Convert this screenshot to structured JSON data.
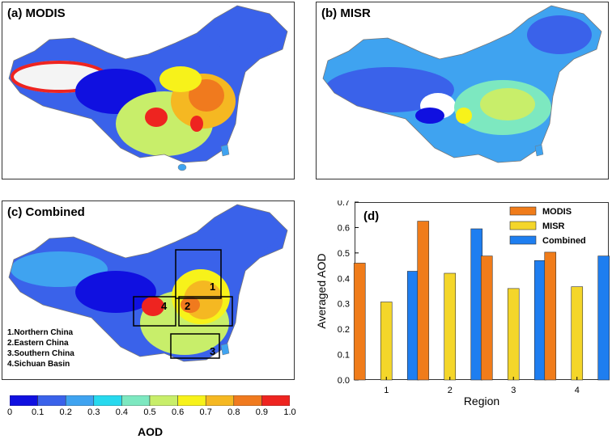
{
  "panels": {
    "a": {
      "label": "(a) MODIS"
    },
    "b": {
      "label": "(b) MISR"
    },
    "c": {
      "label": "(c) Combined"
    },
    "d": {
      "label": "(d)"
    }
  },
  "regions": {
    "legend": [
      "1.Northern China",
      "2.Eastern China",
      "3.Southern China",
      "4.Sichuan Basin"
    ],
    "box_numbers": [
      "1",
      "2",
      "3",
      "4"
    ]
  },
  "colorbar": {
    "title": "AOD",
    "ticks": [
      "0",
      "0.1",
      "0.2",
      "0.3",
      "0.4",
      "0.5",
      "0.6",
      "0.7",
      "0.8",
      "0.9",
      "1.0"
    ],
    "colors": [
      "#1010e0",
      "#3a62ea",
      "#3fa3f0",
      "#27d9ee",
      "#7de8c0",
      "#c8ee6a",
      "#f7f21a",
      "#f5b822",
      "#f07a1e",
      "#ee2420"
    ]
  },
  "chart_data": {
    "type": "bar",
    "categories": [
      "1",
      "2",
      "3",
      "4"
    ],
    "series": [
      {
        "name": "MODIS",
        "values": [
          0.46,
          0.625,
          0.488,
          0.503
        ],
        "color": "#f07c1a"
      },
      {
        "name": "MISR",
        "values": [
          0.307,
          0.42,
          0.36,
          0.367
        ],
        "color": "#f4d62a"
      },
      {
        "name": "Combined",
        "values": [
          0.428,
          0.595,
          0.47,
          0.488
        ],
        "color": "#1e7ef0"
      }
    ],
    "xlabel": "Region",
    "ylabel": "Averaged AOD",
    "ylim": [
      0,
      0.7
    ],
    "yticks": [
      "0.0",
      "0.1",
      "0.2",
      "0.3",
      "0.4",
      "0.5",
      "0.6",
      "0.7"
    ],
    "grid": false,
    "legend_position": "top-right"
  }
}
